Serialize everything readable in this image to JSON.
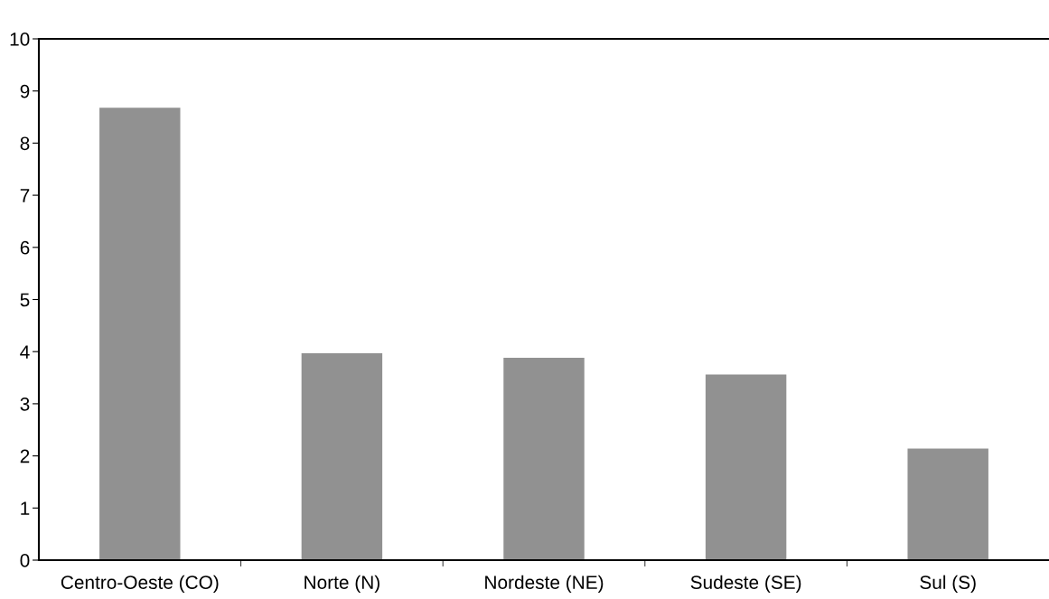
{
  "chart_data": {
    "type": "bar",
    "categories": [
      "Centro-Oeste (CO)",
      "Norte (N)",
      "Nordeste (NE)",
      "Sudeste (SE)",
      "Sul (S)"
    ],
    "values": [
      8.68,
      3.97,
      3.88,
      3.56,
      2.14
    ],
    "color": "#919191",
    "ylim": [
      0,
      10
    ],
    "yticks": [
      0,
      1,
      2,
      3,
      4,
      5,
      6,
      7,
      8,
      9,
      10
    ],
    "grid": false
  }
}
